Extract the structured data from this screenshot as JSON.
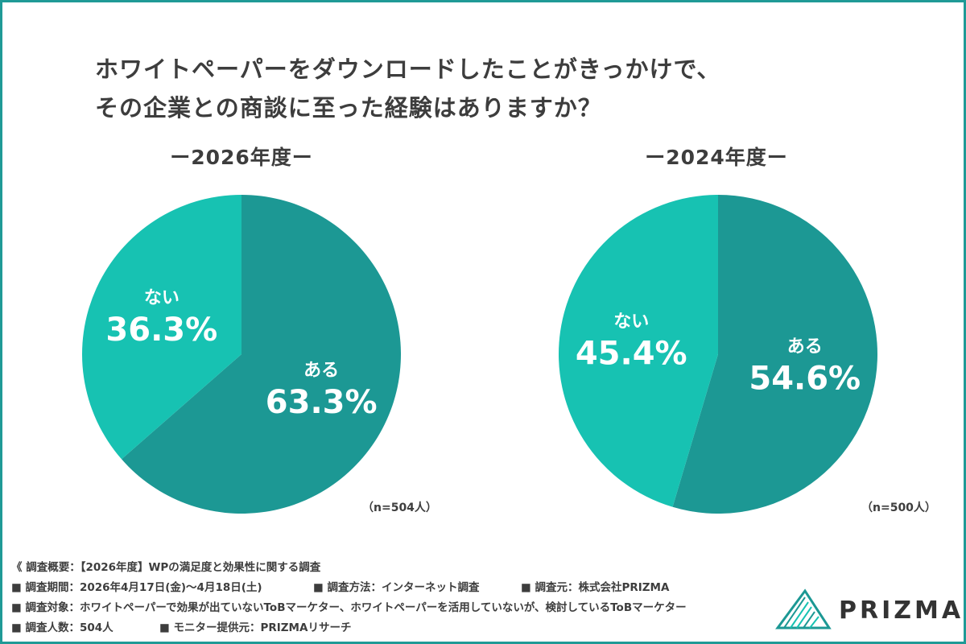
{
  "title_lines": [
    "ホワイトペーパーをダウンロードしたことがきっかけで、",
    "その企業との商談に至った経験はありますか？"
  ],
  "colors": {
    "aru": "#1c9894",
    "nai": "#17c2b2",
    "border": "#1f9a96",
    "text": "#3d3d3d"
  },
  "chart_data": [
    {
      "type": "pie",
      "title": "ー2026年度ー",
      "slices": [
        {
          "label": "ある",
          "value": 63.3,
          "display": "63.3%"
        },
        {
          "label": "ない",
          "value": 36.3,
          "display": "36.3%"
        }
      ],
      "n": "（n=504人）"
    },
    {
      "type": "pie",
      "title": "ー2024年度ー",
      "slices": [
        {
          "label": "ある",
          "value": 54.6,
          "display": "54.6%"
        },
        {
          "label": "ない",
          "value": 45.4,
          "display": "45.4%"
        }
      ],
      "n": "（n=500人）"
    }
  ],
  "notes": {
    "overview": "《 調査概要：【2026年度】WPの満足度と効果性に関する調査",
    "period": "■ 調査期間：2026年4月17日(金)〜4月18日(土)",
    "method": "■ 調査方法：インターネット調査",
    "source": "■ 調査元：株式会社PRIZMA",
    "target": "■ 調査対象：ホワイトペーパーで効果が出ていないToBマーケター、ホワイトペーパーを活用していないが、検討しているToBマーケター",
    "count": "■ 調査人数：504人",
    "monitor": "■ モニター提供元：PRIZMAリサーチ"
  },
  "logo": {
    "text": "PRIZMA"
  }
}
